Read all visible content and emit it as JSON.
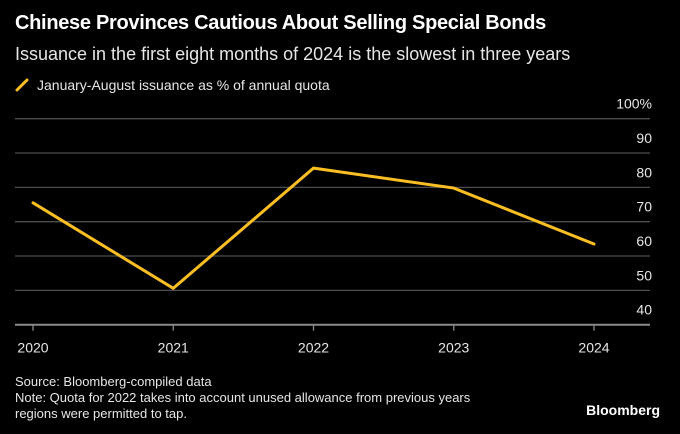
{
  "chart_data": {
    "type": "line",
    "title": "Chinese Provinces Cautious About Selling Special Bonds",
    "subtitle": "Issuance in the first eight months of 2024 is the slowest in three years",
    "xlabel": "",
    "ylabel": "",
    "x": [
      "2020",
      "2021",
      "2022",
      "2023",
      "2024"
    ],
    "series": [
      {
        "name": "January-August issuance as % of annual quota",
        "color": "#fbbf24",
        "values": [
          75.5,
          50.6,
          85.6,
          79.8,
          63.5
        ]
      }
    ],
    "ylim": [
      40,
      100
    ],
    "yticks": [
      40,
      50,
      60,
      70,
      80,
      90,
      100
    ],
    "ytick_labels": [
      "40",
      "50",
      "60",
      "70",
      "80",
      "90",
      "100%"
    ],
    "y_axis_position": "right",
    "grid": true,
    "legend_position": "top-left"
  },
  "legend": {
    "label": "January-August issuance as % of annual quota"
  },
  "footer": {
    "source": "Source: Bloomberg-compiled data",
    "note_line1": "Note: Quota for 2022 takes into account unused allowance from previous years",
    "note_line2": "regions were permitted to tap."
  },
  "brand": "Bloomberg"
}
